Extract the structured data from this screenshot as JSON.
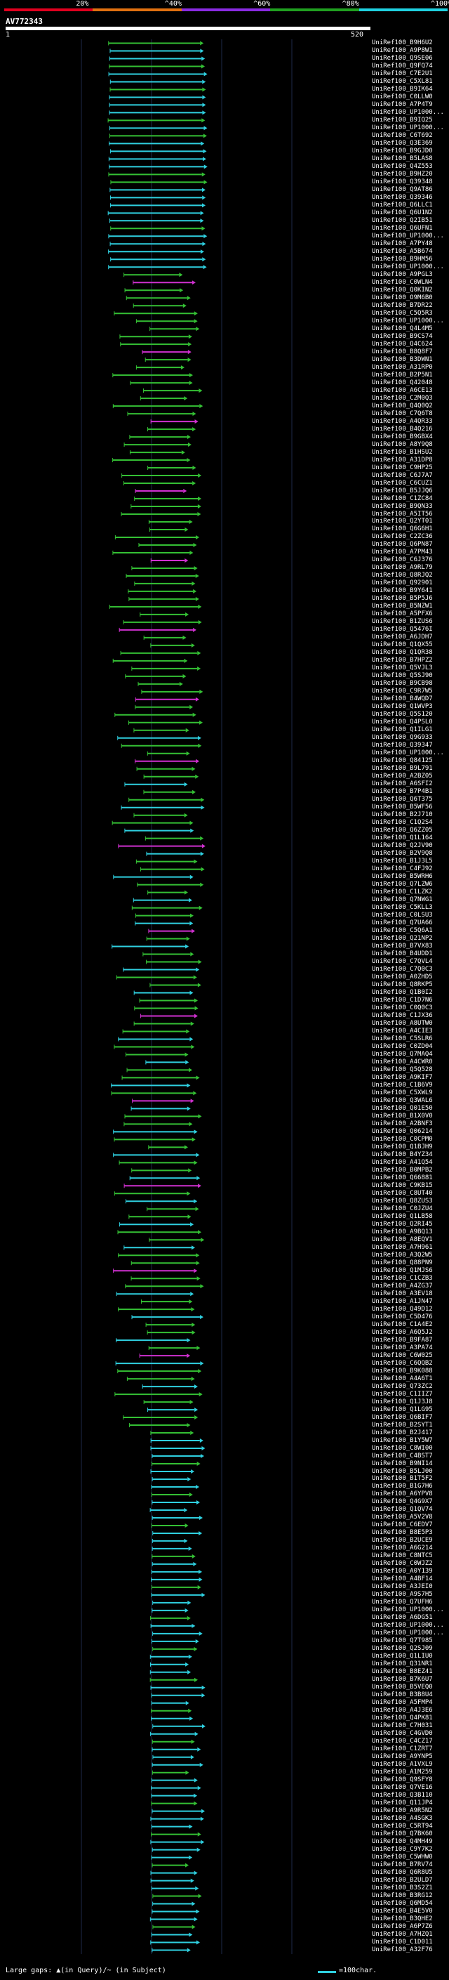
{
  "scale": {
    "labels": [
      "20%",
      "^40%",
      "^60%",
      "^80%",
      "^100%"
    ],
    "colors": [
      "#e0001e",
      "#e07010",
      "#8a2be2",
      "#20a020",
      "#1fd0e0"
    ]
  },
  "query": {
    "id": "AV772343",
    "start": "1",
    "end": "520"
  },
  "colors": {
    "cyan": "#2fd0e0",
    "green": "#34c034",
    "magenta": "#d030d0",
    "grid": "#1e2a4a",
    "bg": "#000000"
  },
  "hits": [
    "UniRef100_B9H6U2",
    "UniRef100_A9P8W1",
    "UniRef100_Q9SE06",
    "UniRef100_Q9FQ74",
    "UniRef100_C7E2U1",
    "UniRef100_C5XL81",
    "UniRef100_B9IK64",
    "UniRef100_C0LLW0",
    "UniRef100_A7P4T9",
    "UniRef100_UP1000...",
    "UniRef100_B9IQ25",
    "UniRef100_UP1000...",
    "UniRef100_C6T692",
    "UniRef100_Q3E369",
    "UniRef100_B9GJD0",
    "UniRef100_B5LAS8",
    "UniRef100_Q4Z553",
    "UniRef100_B9HZ20",
    "UniRef100_Q39348",
    "UniRef100_Q9AT86",
    "UniRef100_Q39346",
    "UniRef100_Q6LLC1",
    "UniRef100_Q6U1N2",
    "UniRef100_Q2IB51",
    "UniRef100_Q6UFN1",
    "UniRef100_UP1000...",
    "UniRef100_A7PY48",
    "UniRef100_A5B674",
    "UniRef100_B9HM56",
    "UniRef100_UP1000...",
    "UniRef100_A9PGL3",
    "UniRef100_C0WLN4",
    "UniRef100_Q0KIN2",
    "UniRef100_O9M6B0",
    "UniRef100_B7DR22",
    "UniRef100_C5Q5R3",
    "UniRef100_UP1000...",
    "UniRef100_Q4L4M5",
    "UniRef100_B9CS74",
    "UniRef100_Q4C624",
    "UniRef100_B8Q8F7",
    "UniRef100_B3DWN1",
    "UniRef100_A31RP0",
    "UniRef100_B2P5N1",
    "UniRef100_Q42048",
    "UniRef100_A6CE13",
    "UniRef100_C2M0Q3",
    "UniRef100_Q4Q0Q2",
    "UniRef100_C7Q6T8",
    "UniRef100_A4QR33",
    "UniRef100_B4Q216",
    "UniRef100_B9GBX4",
    "UniRef100_A8Y9Q8",
    "UniRef100_B1HSU2",
    "UniRef100_A31DP8",
    "UniRef100_C9HP25",
    "UniRef100_C6J7A7",
    "UniRef100_C6CUZ1",
    "UniRef100_B5JJQ6",
    "UniRef100_C1ZC84",
    "UniRef100_B9QN33",
    "UniRef100_A5IT56",
    "UniRef100_Q2YT01",
    "UniRef100_Q6G6H1",
    "UniRef100_C2ZC36",
    "UniRef100_Q6PN87",
    "UniRef100_A7PM43",
    "UniRef100_C6J376",
    "UniRef100_A9RL79",
    "UniRef100_Q8RJQ2",
    "UniRef100_Q92901",
    "UniRef100_B9Y641",
    "UniRef100_B5P5J6",
    "UniRef100_B5NZW1",
    "UniRef100_A5PFX6",
    "UniRef100_B1ZUS6",
    "UniRef100_Q5476I",
    "UniRef100_A6JDH7",
    "UniRef100_Q1QX55",
    "UniRef100_Q1QR38",
    "UniRef100_B7HPZ2",
    "UniRef100_Q5VJL3",
    "UniRef100_Q5SJ90",
    "UniRef100_B9CB98",
    "UniRef100_C9R7W5",
    "UniRef100_B4WQD7",
    "UniRef100_Q1WVP3",
    "UniRef100_Q5S120",
    "UniRef100_Q4PSL0",
    "UniRef100_Q1ILG1",
    "UniRef100_Q9G933",
    "UniRef100_Q39347",
    "UniRef100_UP1000...",
    "UniRef100_Q84125",
    "UniRef100_B9L791",
    "UniRef100_A2BZ05",
    "UniRef100_A6SFI2",
    "UniRef100_B7P4B1",
    "UniRef100_Q6T375",
    "UniRef100_B5WF56",
    "UniRef100_B2J710",
    "UniRef100_C1Q2S4",
    "UniRef100_Q6ZZ05",
    "UniRef100_Q1L164",
    "UniRef100_Q2JV90",
    "UniRef100_B2V9Q8",
    "UniRef100_B1J3L5",
    "UniRef100_C4FJ92",
    "UniRef100_B5WRH6",
    "UniRef100_Q7LZW6",
    "UniRef100_C1LZK2",
    "UniRef100_Q7NWG1",
    "UniRef100_C5KLL3",
    "UniRef100_C0LSU3",
    "UniRef100_Q7UA66",
    "UniRef100_C5Q6A1",
    "UniRef100_Q21NP2",
    "UniRef100_B7VX83",
    "UniRef100_B4UDD1",
    "UniRef100_C7QVL4",
    "UniRef100_C7Q0C3",
    "UniRef100_A0ZHD5",
    "UniRef100_Q8RKP5",
    "UniRef100_Q1B0I2",
    "UniRef100_C1D7N6",
    "UniRef100_C0Q0C3",
    "UniRef100_C1JX36",
    "UniRef100_A8UTW0",
    "UniRef100_A4CIE3",
    "UniRef100_C5SLR6",
    "UniRef100_C0ZD04",
    "UniRef100_Q7MAQ4",
    "UniRef100_A4CWR0",
    "UniRef100_Q5Q528",
    "UniRef100_A9KIF7",
    "UniRef100_C1B6V9",
    "UniRef100_C5XWL9",
    "UniRef100_Q3WAL6",
    "UniRef100_Q01E50",
    "UniRef100_B1X0V0",
    "UniRef100_A2BNF3",
    "UniRef100_Q06214",
    "UniRef100_C0CPM0",
    "UniRef100_Q1BJH9",
    "UniRef100_B4YZ34",
    "UniRef100_A41Q54",
    "UniRef100_B0MPB2",
    "UniRef100_Q66881",
    "UniRef100_C9KB15",
    "UniRef100_C8UT40",
    "UniRef100_Q8ZUS3",
    "UniRef100_C0JZU4",
    "UniRef100_Q1LB58",
    "UniRef100_Q2RI45",
    "UniRef100_A9BQ13",
    "UniRef100_A8EQV1",
    "UniRef100_A7H961",
    "UniRef100_A3Q2W5",
    "UniRef100_Q88PN9",
    "UniRef100_Q1MJS6",
    "UniRef100_C1CZB3",
    "UniRef100_A4ZG37",
    "UniRef100_A3EV18",
    "UniRef100_A1JN47",
    "UniRef100_Q49D12",
    "UniRef100_C5D476",
    "UniRef100_C1A4E2",
    "UniRef100_A6Q5J2",
    "UniRef100_B9FA87",
    "UniRef100_A3PA74",
    "UniRef100_C6W025",
    "UniRef100_C6QQB2",
    "UniRef100_B9K088",
    "UniRef100_A4A6T1",
    "UniRef100_Q73ZC2",
    "UniRef100_C1IIZ7",
    "UniRef100_Q1J3J8",
    "UniRef100_Q1LG95",
    "UniRef100_Q6BIF7",
    "UniRef100_B2SYT1",
    "UniRef100_B2J417",
    "UniRef100_B1Y5W7",
    "UniRef100_C8WI00",
    "UniRef100_C4BST7",
    "UniRef100_B9NI14",
    "UniRef100_B5LJ00",
    "UniRef100_B1T5F2",
    "UniRef100_B1G7H6",
    "UniRef100_A6YPV8",
    "UniRef100_Q4G9X7",
    "UniRef100_Q1QV74",
    "UniRef100_A5V2V8",
    "UniRef100_C6EDV7",
    "UniRef100_B8E5P3",
    "UniRef100_B2UCE9",
    "UniRef100_A6G214",
    "UniRef100_C8NTC5",
    "UniRef100_C0WJZ2",
    "UniRef100_A0Y139",
    "UniRef100_A4BF14",
    "UniRef100_A3JEI0",
    "UniRef100_A9S7H5",
    "UniRef100_Q7UFH6",
    "UniRef100_UP1000...",
    "UniRef100_A6DG51",
    "UniRef100_UP1000...",
    "UniRef100_UP1000...",
    "UniRef100_Q7T985",
    "UniRef100_Q2SJ09",
    "UniRef100_Q1LIU0",
    "UniRef100_Q31NR1",
    "UniRef100_B8EZ41",
    "UniRef100_B7K6U7",
    "UniRef100_B5VEQ0",
    "UniRef100_B3B8U4",
    "UniRef100_A5FMP4",
    "UniRef100_A4J3E6",
    "UniRef100_Q4PK81",
    "UniRef100_C7H031",
    "UniRef100_C4GVD0",
    "UniRef100_C4CZ17",
    "UniRef100_C1ZRT7",
    "UniRef100_A9YNP5",
    "UniRef100_A1VXL9",
    "UniRef100_A1M259",
    "UniRef100_Q9SFY8",
    "UniRef100_Q7VE16",
    "UniRef100_Q3B110",
    "UniRef100_Q11JP4",
    "UniRef100_A9R5N2",
    "UniRef100_A4SGK3",
    "UniRef100_C5RT94",
    "UniRef100_Q7BK60",
    "UniRef100_Q4MH49",
    "UniRef100_C9Y7K2",
    "UniRef100_C5WHW0",
    "UniRef100_B7RV74",
    "UniRef100_Q6R8U5",
    "UniRef100_B2ULD7",
    "UniRef100_B3S2Z1",
    "UniRef100_B3RG12",
    "UniRef100_Q6MD54",
    "UniRef100_B4E5V0",
    "UniRef100_B3QHE2",
    "UniRef100_A6P7Z6",
    "UniRef100_A7HZQ1",
    "UniRef100_C1D011",
    "UniRef100_A32F76"
  ]
}
